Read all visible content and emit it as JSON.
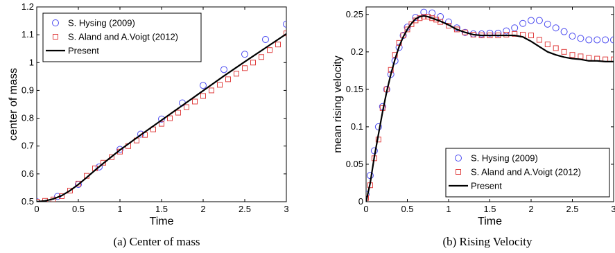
{
  "chart_data": [
    {
      "type": "scatter",
      "caption": "(a)  Center of mass",
      "xlabel": "Time",
      "ylabel": "center of mass",
      "xlim": [
        0,
        3
      ],
      "ylim": [
        0.5,
        1.2
      ],
      "xticks": [
        0,
        0.5,
        1,
        1.5,
        2,
        2.5,
        3
      ],
      "xtick_labels": [
        "0",
        "0.5",
        "1",
        "1.5",
        "2",
        "2.5",
        "3"
      ],
      "yticks": [
        0.5,
        0.6,
        0.7,
        0.8,
        0.9,
        1.0,
        1.1,
        1.2
      ],
      "ytick_labels": [
        "0.5",
        "0.6",
        "0.7",
        "0.8",
        "0.9",
        "1",
        "1.1",
        "1.2"
      ],
      "grid": false,
      "legend_position": "top-left",
      "series": [
        {
          "name": "S. Hysing (2009)",
          "marker": "circle",
          "color": "#4a4af0",
          "x": [
            0.0,
            0.25,
            0.5,
            0.75,
            1.0,
            1.25,
            1.5,
            1.75,
            2.0,
            2.25,
            2.5,
            2.75,
            3.0
          ],
          "y": [
            0.5,
            0.519,
            0.562,
            0.625,
            0.688,
            0.743,
            0.797,
            0.855,
            0.918,
            0.975,
            1.03,
            1.083,
            1.138
          ]
        },
        {
          "name": "S. Aland and A.Voigt (2012)",
          "marker": "square",
          "color": "#e04040",
          "x": [
            0.0,
            0.1,
            0.2,
            0.3,
            0.4,
            0.5,
            0.6,
            0.7,
            0.8,
            0.9,
            1.0,
            1.1,
            1.2,
            1.3,
            1.4,
            1.5,
            1.6,
            1.7,
            1.8,
            1.9,
            2.0,
            2.1,
            2.2,
            2.3,
            2.4,
            2.5,
            2.6,
            2.7,
            2.8,
            2.9,
            3.0
          ],
          "y": [
            0.5,
            0.503,
            0.508,
            0.52,
            0.54,
            0.565,
            0.593,
            0.62,
            0.64,
            0.66,
            0.68,
            0.7,
            0.72,
            0.74,
            0.76,
            0.78,
            0.8,
            0.82,
            0.84,
            0.86,
            0.88,
            0.9,
            0.92,
            0.94,
            0.96,
            0.98,
            1.0,
            1.02,
            1.045,
            1.065,
            1.105
          ]
        },
        {
          "name": "Present",
          "marker": "line",
          "color": "#000000",
          "x": [
            0,
            0.1,
            0.2,
            0.3,
            0.4,
            0.5,
            0.6,
            0.7,
            0.8,
            0.9,
            1.0,
            1.25,
            1.5,
            1.75,
            2.0,
            2.25,
            2.5,
            2.75,
            3.0
          ],
          "y": [
            0.5,
            0.503,
            0.51,
            0.522,
            0.54,
            0.562,
            0.587,
            0.613,
            0.638,
            0.662,
            0.686,
            0.74,
            0.793,
            0.846,
            0.899,
            0.952,
            1.003,
            1.053,
            1.103
          ]
        }
      ]
    },
    {
      "type": "scatter",
      "caption": "(b)  Rising Velocity",
      "xlabel": "Time",
      "ylabel": "mean rising velocity",
      "xlim": [
        0,
        3
      ],
      "ylim": [
        0,
        0.26
      ],
      "xticks": [
        0,
        0.5,
        1,
        1.5,
        2,
        2.5,
        3
      ],
      "xtick_labels": [
        "0",
        "0.5",
        "1",
        "1.5",
        "2",
        "2.5",
        "3"
      ],
      "yticks": [
        0,
        0.05,
        0.1,
        0.15,
        0.2,
        0.25
      ],
      "ytick_labels": [
        "0",
        "0.05",
        "0.1",
        "0.15",
        "0.2",
        "0.25"
      ],
      "grid": false,
      "legend_position": "bottom-right",
      "series": [
        {
          "name": "S. Hysing (2009)",
          "marker": "circle",
          "color": "#4a4af0",
          "x": [
            0.0,
            0.05,
            0.1,
            0.15,
            0.2,
            0.25,
            0.3,
            0.35,
            0.4,
            0.45,
            0.5,
            0.6,
            0.7,
            0.8,
            0.9,
            1.0,
            1.1,
            1.2,
            1.3,
            1.4,
            1.5,
            1.6,
            1.7,
            1.8,
            1.9,
            2.0,
            2.1,
            2.2,
            2.3,
            2.4,
            2.5,
            2.6,
            2.7,
            2.8,
            2.9,
            3.0
          ],
          "y": [
            0.01,
            0.035,
            0.068,
            0.1,
            0.127,
            0.15,
            0.17,
            0.188,
            0.206,
            0.222,
            0.233,
            0.246,
            0.253,
            0.252,
            0.247,
            0.24,
            0.232,
            0.226,
            0.224,
            0.224,
            0.225,
            0.225,
            0.228,
            0.232,
            0.238,
            0.242,
            0.242,
            0.237,
            0.232,
            0.227,
            0.221,
            0.218,
            0.216,
            0.216,
            0.216,
            0.216
          ]
        },
        {
          "name": "S. Aland and A.Voigt (2012)",
          "marker": "square",
          "color": "#e04040",
          "x": [
            0.0,
            0.05,
            0.1,
            0.15,
            0.2,
            0.25,
            0.3,
            0.35,
            0.4,
            0.45,
            0.5,
            0.55,
            0.6,
            0.65,
            0.7,
            0.75,
            0.8,
            0.85,
            0.9,
            1.0,
            1.1,
            1.2,
            1.3,
            1.4,
            1.5,
            1.6,
            1.7,
            1.8,
            1.9,
            2.0,
            2.1,
            2.2,
            2.3,
            2.4,
            2.5,
            2.6,
            2.7,
            2.8,
            2.9,
            3.0
          ],
          "y": [
            0.005,
            0.022,
            0.058,
            0.083,
            0.125,
            0.15,
            0.176,
            0.196,
            0.212,
            0.222,
            0.23,
            0.237,
            0.242,
            0.245,
            0.247,
            0.247,
            0.245,
            0.243,
            0.24,
            0.235,
            0.23,
            0.226,
            0.223,
            0.222,
            0.222,
            0.222,
            0.223,
            0.224,
            0.223,
            0.222,
            0.216,
            0.21,
            0.205,
            0.2,
            0.196,
            0.194,
            0.192,
            0.191,
            0.19,
            0.19
          ]
        },
        {
          "name": "Present",
          "marker": "line",
          "color": "#000000",
          "x": [
            0,
            0.05,
            0.1,
            0.15,
            0.2,
            0.25,
            0.3,
            0.35,
            0.4,
            0.45,
            0.5,
            0.55,
            0.6,
            0.65,
            0.7,
            0.75,
            0.8,
            0.9,
            1.0,
            1.1,
            1.2,
            1.3,
            1.4,
            1.5,
            1.6,
            1.7,
            1.8,
            1.9,
            2.0,
            2.1,
            2.2,
            2.3,
            2.4,
            2.5,
            2.6,
            2.7,
            2.8,
            2.9,
            3.0
          ],
          "y": [
            0,
            0.025,
            0.06,
            0.09,
            0.12,
            0.147,
            0.17,
            0.19,
            0.207,
            0.22,
            0.23,
            0.238,
            0.244,
            0.247,
            0.248,
            0.247,
            0.245,
            0.241,
            0.236,
            0.23,
            0.226,
            0.223,
            0.222,
            0.222,
            0.222,
            0.222,
            0.222,
            0.22,
            0.214,
            0.207,
            0.2,
            0.196,
            0.193,
            0.191,
            0.19,
            0.188,
            0.188,
            0.187,
            0.187
          ]
        }
      ]
    }
  ]
}
